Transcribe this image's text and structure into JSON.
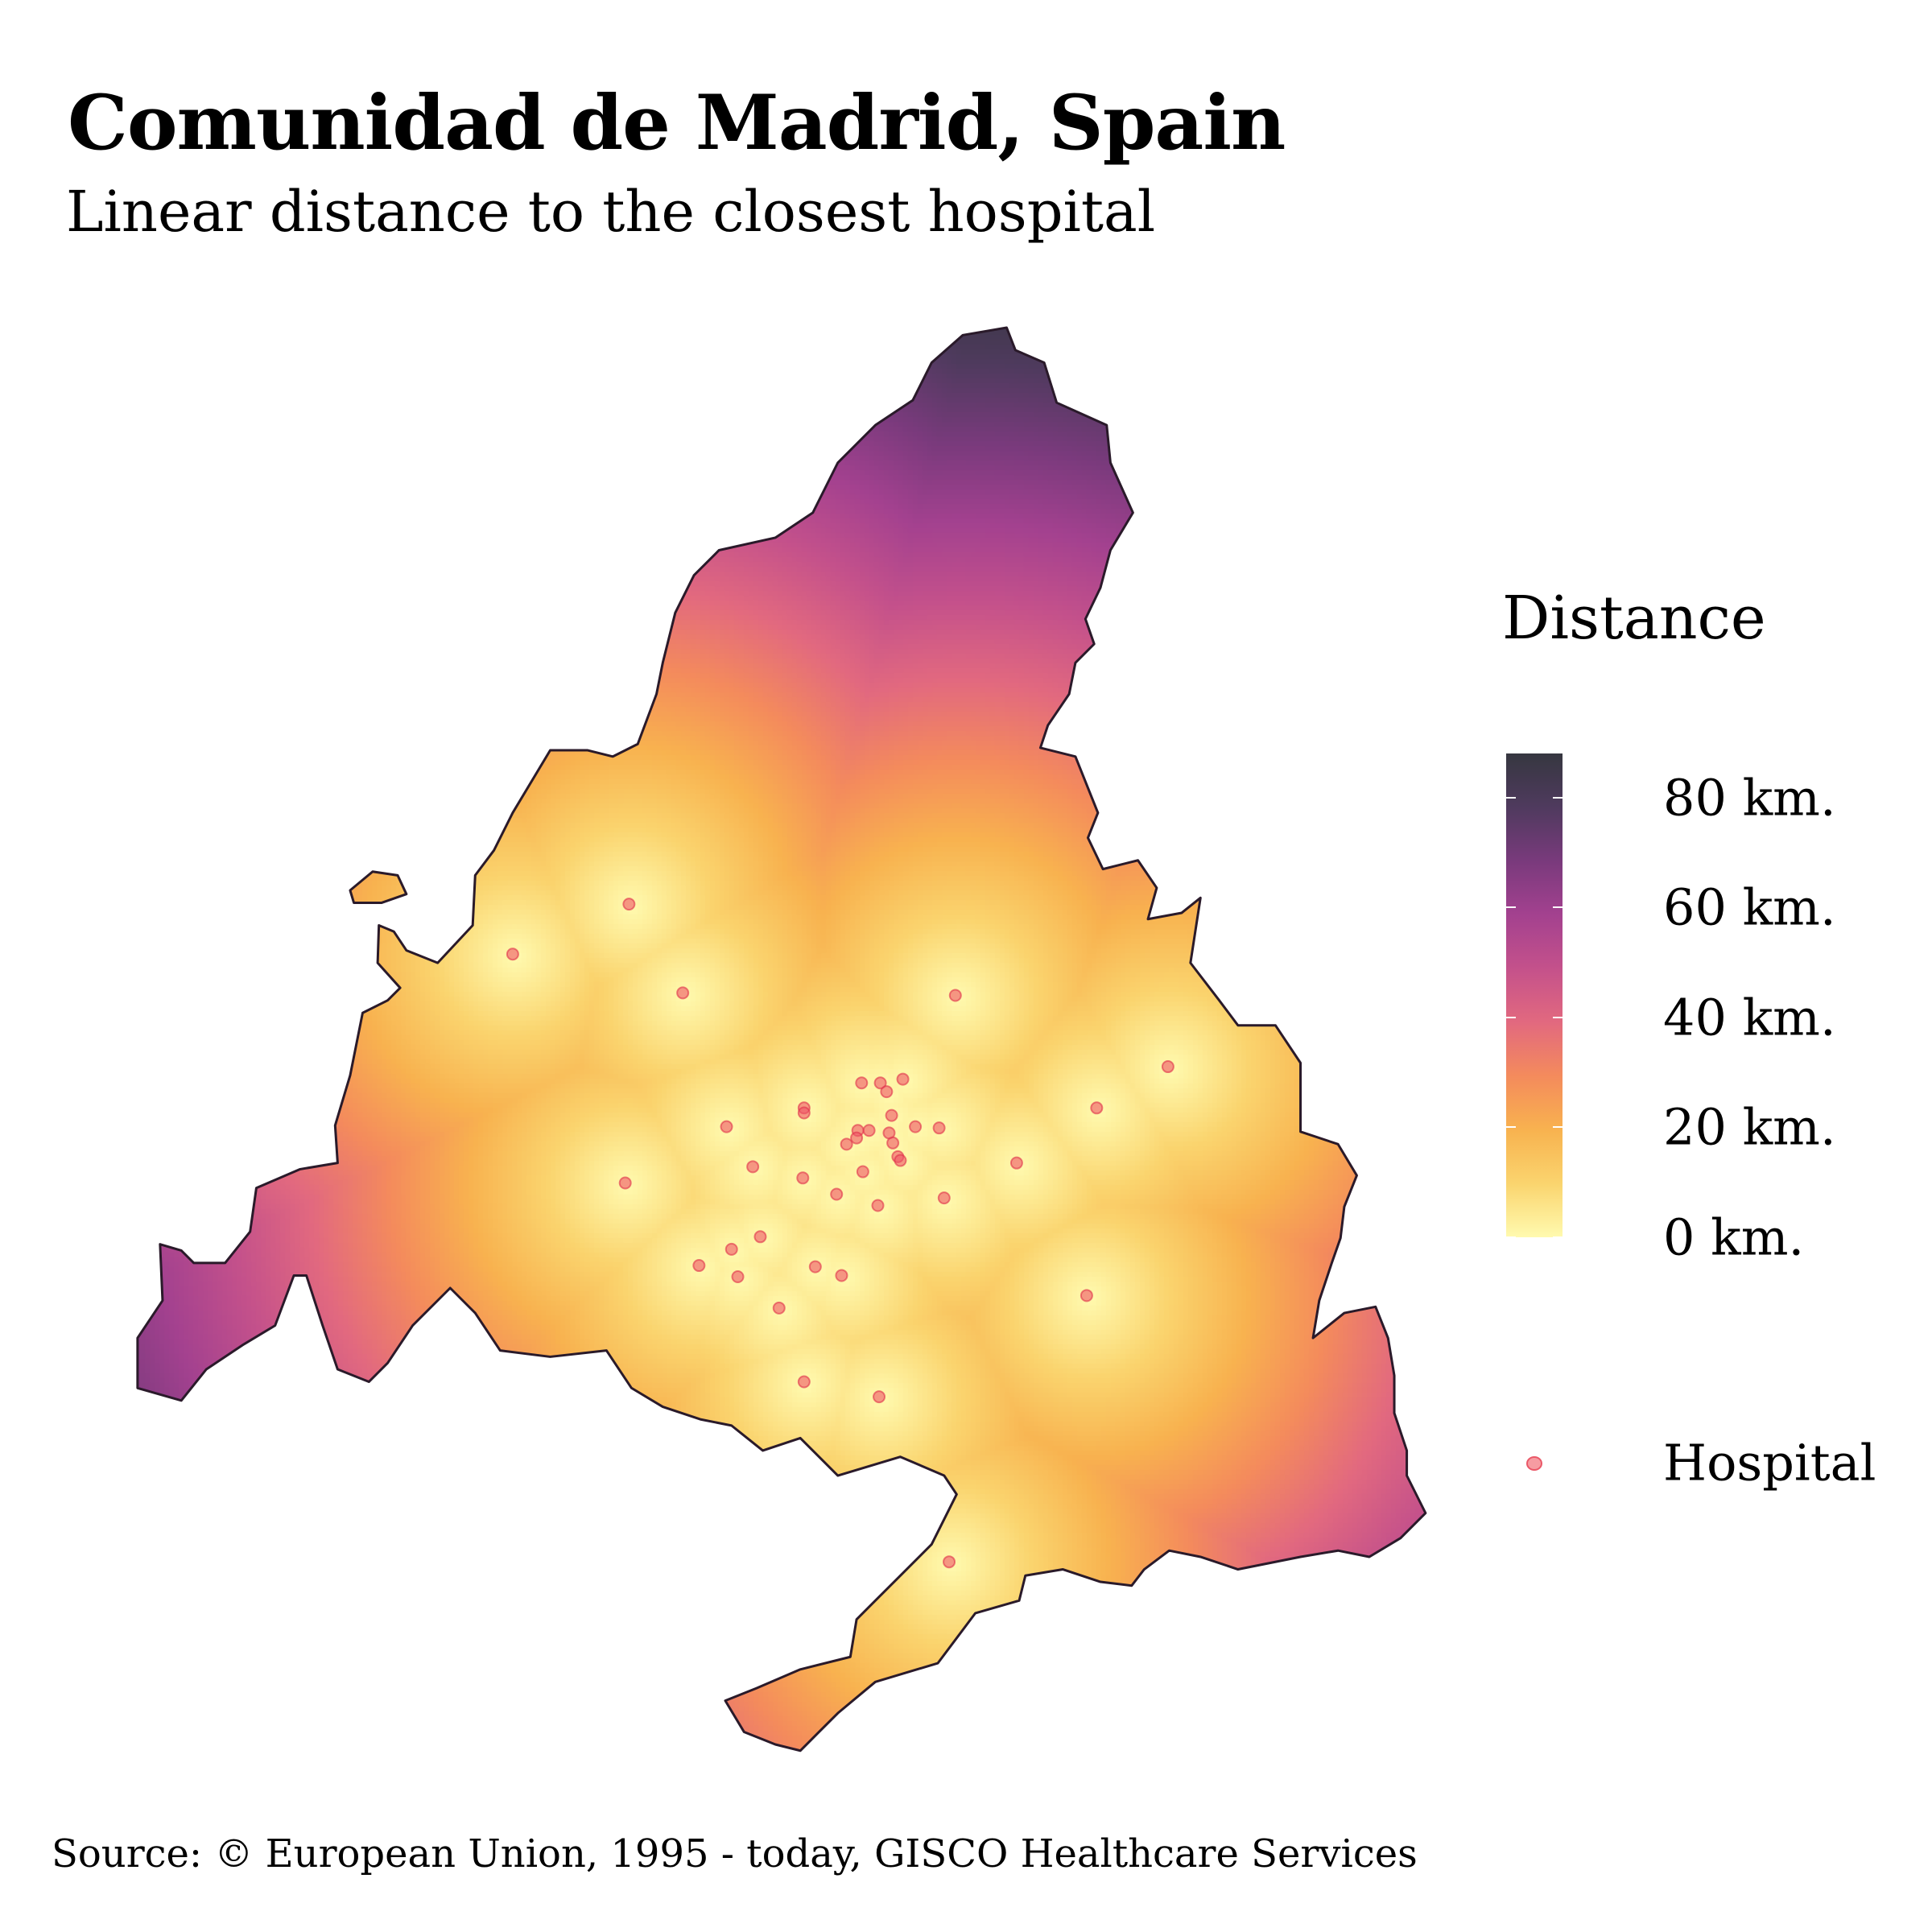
{
  "header": {
    "title": "Comunidad de Madrid, Spain",
    "subtitle": "Linear distance to the closest hospital"
  },
  "legend": {
    "title": "Distance",
    "ticks": [
      {
        "value": 80,
        "label": "80 km."
      },
      {
        "value": 60,
        "label": "60 km."
      },
      {
        "value": 40,
        "label": "40 km."
      },
      {
        "value": 20,
        "label": "20 km."
      },
      {
        "value": 0,
        "label": "0 km."
      }
    ],
    "range_km": [
      0,
      88
    ],
    "points_label": "Hospital",
    "colors": [
      "#fffaaf",
      "#fad46e",
      "#f8b24f",
      "#f48b5c",
      "#e2697f",
      "#c4518b",
      "#a3418f",
      "#793a7c",
      "#4f3a5e",
      "#363740"
    ],
    "hospital_color": "#ee5566"
  },
  "footer": {
    "source": "Source: © European Union, 1995 - today, GISCO Healthcare Services"
  }
}
